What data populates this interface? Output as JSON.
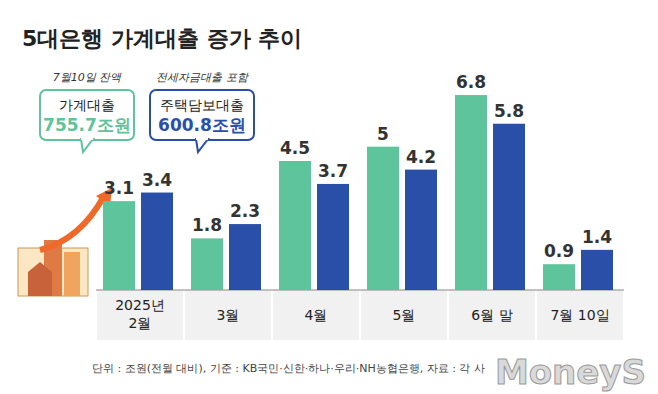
{
  "chart_data": {
    "type": "bar",
    "title": "5대은행 가계대출 증가 추이",
    "categories": [
      "2025년\n2월",
      "3월",
      "4월",
      "5월",
      "6월 말",
      "7월 10일"
    ],
    "series": [
      {
        "name": "가계대출",
        "color": "#5ec49b",
        "values": [
          3.1,
          1.8,
          4.5,
          5.0,
          6.8,
          0.9
        ]
      },
      {
        "name": "주택담보대출",
        "color": "#2a4fa8",
        "values": [
          3.4,
          2.3,
          3.7,
          4.2,
          5.8,
          1.4
        ]
      }
    ],
    "annotations": [
      {
        "text": "7월10일 잔액",
        "value": "755.7조원"
      },
      {
        "text": "전세자금대출 포함",
        "value": "600.8조원"
      }
    ],
    "ylim": [
      0,
      7.5
    ],
    "data_labels": true,
    "tick_labels": "x",
    "grid": false,
    "footer": "단위 : 조원(전월 대비), 기준 : KB국민·신한·하나·우리·NH농협은행, 자료 : 각 사",
    "watermark": "MoneyS"
  }
}
